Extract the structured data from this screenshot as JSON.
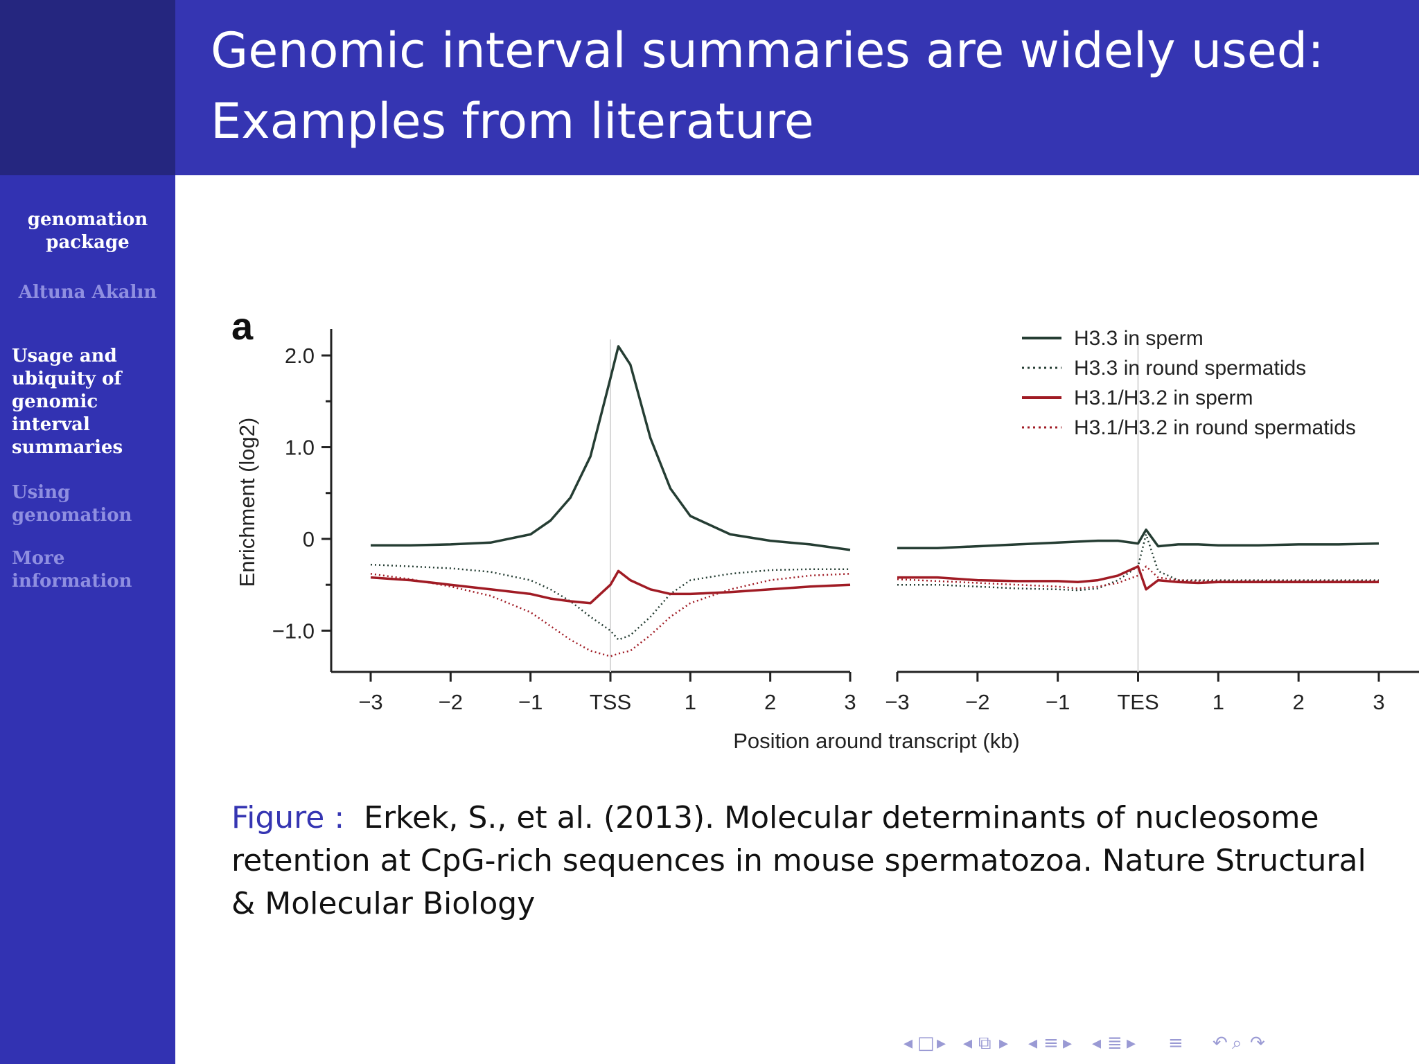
{
  "slide": {
    "title_lines": [
      "Genomic interval summaries are widely used:",
      "Examples from literature"
    ]
  },
  "sidebar": {
    "title_lines": [
      "genomation",
      "package"
    ],
    "author": "Altuna Akalın",
    "sections": [
      {
        "lines": [
          "Usage and",
          "ubiquity of",
          "genomic",
          "interval",
          "summaries"
        ],
        "active": true
      },
      {
        "lines": [
          "Using",
          "genomation"
        ],
        "active": false
      },
      {
        "lines": [
          "More",
          "information"
        ],
        "active": false
      }
    ]
  },
  "caption": {
    "label": "Figure :",
    "lines": [
      "Erkek, S., et al. (2013). Molecular determinants of nucleosome",
      "retention at CpG-rich sequences in mouse spermatozoa. Nature Structural",
      "& Molecular Biology"
    ]
  },
  "colors": {
    "sidebar": "#3232b2",
    "titlebar": "#3535b2",
    "corner": "#25267f",
    "dark_green": "#253d33",
    "red": "#a01b24"
  },
  "navigation": {
    "icons": [
      "nav-prev-frame-icon",
      "nav-frame-icon",
      "nav-next-frame-icon",
      "nav-prev-subsection-icon",
      "nav-subsection-icon",
      "nav-next-subsection-icon",
      "nav-prev-section-icon",
      "nav-section-icon",
      "nav-next-section-icon",
      "nav-prev-all-icon",
      "nav-all-icon",
      "nav-next-all-icon",
      "nav-toc-icon",
      "nav-back-icon",
      "nav-search-icon",
      "nav-forward-icon"
    ]
  },
  "chart_data": {
    "type": "line",
    "panel_label": "a",
    "ylabel": "Enrichment (log2)",
    "xlabel": "Position around transcript (kb)",
    "ylim": [
      -1.45,
      2.25
    ],
    "y_ticks": [
      "2.0",
      "1.0",
      "0",
      "−1.0"
    ],
    "y_tick_values": [
      2.0,
      1.0,
      0,
      -1.0
    ],
    "panels": [
      {
        "anchor": "TSS",
        "x_ticks": [
          "−3",
          "−2",
          "−1",
          "TSS",
          "1",
          "2",
          "3"
        ],
        "xlim": [
          -3,
          3
        ]
      },
      {
        "anchor": "TES",
        "x_ticks": [
          "−3",
          "−2",
          "−1",
          "TES",
          "1",
          "2",
          "3"
        ],
        "xlim": [
          -3,
          3
        ]
      }
    ],
    "x": [
      -3,
      -2.5,
      -2,
      -1.5,
      -1,
      -0.75,
      -0.5,
      -0.25,
      0,
      0.1,
      0.25,
      0.5,
      0.75,
      1,
      1.5,
      2,
      2.5,
      3
    ],
    "series": [
      {
        "name": "H3.3 in sperm",
        "style": "solid",
        "color": "#253d33",
        "tss": [
          -0.07,
          -0.07,
          -0.06,
          -0.04,
          0.05,
          0.2,
          0.45,
          0.9,
          1.75,
          2.1,
          1.9,
          1.1,
          0.55,
          0.25,
          0.05,
          -0.02,
          -0.06,
          -0.12
        ],
        "tes": [
          -0.1,
          -0.1,
          -0.08,
          -0.06,
          -0.04,
          -0.03,
          -0.02,
          -0.02,
          -0.05,
          0.1,
          -0.08,
          -0.06,
          -0.06,
          -0.07,
          -0.07,
          -0.06,
          -0.06,
          -0.05
        ]
      },
      {
        "name": "H3.3 in round spermatids",
        "style": "dotted",
        "color": "#253d33",
        "tss": [
          -0.28,
          -0.3,
          -0.32,
          -0.36,
          -0.45,
          -0.55,
          -0.68,
          -0.85,
          -1.0,
          -1.1,
          -1.05,
          -0.85,
          -0.6,
          -0.45,
          -0.38,
          -0.34,
          -0.33,
          -0.33
        ],
        "tes": [
          -0.5,
          -0.5,
          -0.52,
          -0.54,
          -0.55,
          -0.56,
          -0.54,
          -0.45,
          -0.3,
          0.05,
          -0.35,
          -0.45,
          -0.45,
          -0.45,
          -0.45,
          -0.45,
          -0.45,
          -0.45
        ]
      },
      {
        "name": "H3.1/H3.2 in sperm",
        "style": "solid",
        "color": "#a01b24",
        "tss": [
          -0.42,
          -0.45,
          -0.5,
          -0.55,
          -0.6,
          -0.65,
          -0.68,
          -0.7,
          -0.5,
          -0.35,
          -0.45,
          -0.55,
          -0.6,
          -0.6,
          -0.58,
          -0.55,
          -0.52,
          -0.5
        ],
        "tes": [
          -0.42,
          -0.42,
          -0.45,
          -0.46,
          -0.46,
          -0.47,
          -0.45,
          -0.4,
          -0.3,
          -0.55,
          -0.45,
          -0.47,
          -0.48,
          -0.47,
          -0.47,
          -0.47,
          -0.47,
          -0.47
        ]
      },
      {
        "name": "H3.1/H3.2 in round spermatids",
        "style": "dotted",
        "color": "#a01b24",
        "tss": [
          -0.38,
          -0.44,
          -0.52,
          -0.62,
          -0.8,
          -0.95,
          -1.1,
          -1.22,
          -1.28,
          -1.25,
          -1.22,
          -1.05,
          -0.85,
          -0.7,
          -0.55,
          -0.45,
          -0.4,
          -0.38
        ],
        "tes": [
          -0.44,
          -0.46,
          -0.48,
          -0.5,
          -0.52,
          -0.54,
          -0.52,
          -0.48,
          -0.4,
          -0.3,
          -0.42,
          -0.45,
          -0.46,
          -0.46,
          -0.46,
          -0.46,
          -0.46,
          -0.46
        ]
      }
    ],
    "legend": [
      "H3.3 in sperm",
      "H3.3 in round spermatids",
      "H3.1/H3.2 in sperm",
      "H3.1/H3.2 in round spermatids"
    ],
    "legend_position": "top-right",
    "grid": false
  }
}
